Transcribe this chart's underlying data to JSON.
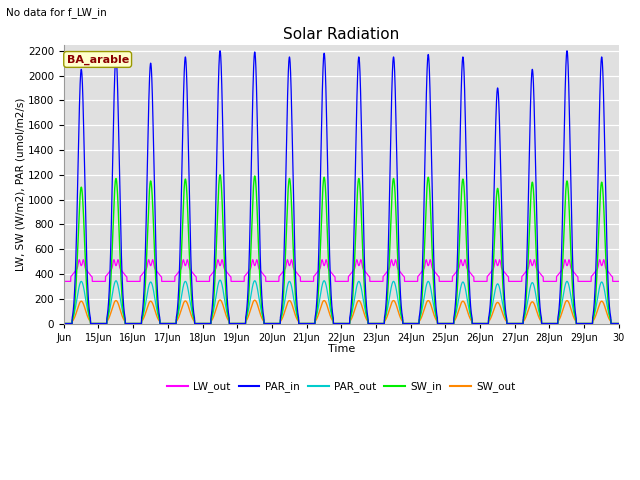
{
  "title": "Solar Radiation",
  "subtitle": "No data for f_LW_in",
  "xlabel": "Time",
  "ylabel": "LW, SW (W/m2), PAR (umol/m2/s)",
  "legend_label": "BA_arable",
  "ylim": [
    0,
    2250
  ],
  "yticks": [
    0,
    200,
    400,
    600,
    800,
    1000,
    1200,
    1400,
    1600,
    1800,
    2000,
    2200
  ],
  "xlim": [
    14,
    30
  ],
  "colors": {
    "LW_out": "#ff00ff",
    "PAR_in": "#0000ff",
    "PAR_out": "#00cccc",
    "SW_in": "#00ee00",
    "SW_out": "#ff8800"
  },
  "axes_background": "#e0e0e0",
  "par_in_peaks": [
    2050,
    2150,
    2100,
    2150,
    2200,
    2190,
    2150,
    2180,
    2150,
    2150,
    2170,
    2150,
    1900,
    2050,
    2200,
    2150
  ],
  "sw_in_peaks": [
    1100,
    1170,
    1150,
    1165,
    1200,
    1190,
    1170,
    1180,
    1170,
    1170,
    1180,
    1165,
    1090,
    1140,
    1150,
    1140
  ],
  "par_out_peaks": [
    340,
    345,
    335,
    340,
    350,
    345,
    340,
    345,
    340,
    340,
    340,
    335,
    320,
    330,
    340,
    335
  ],
  "sw_out_peaks": [
    180,
    185,
    180,
    182,
    190,
    188,
    185,
    185,
    185,
    185,
    185,
    180,
    170,
    175,
    185,
    180
  ],
  "lw_base": 360,
  "lw_day_peak_add": 120,
  "n_points_per_day": 480
}
